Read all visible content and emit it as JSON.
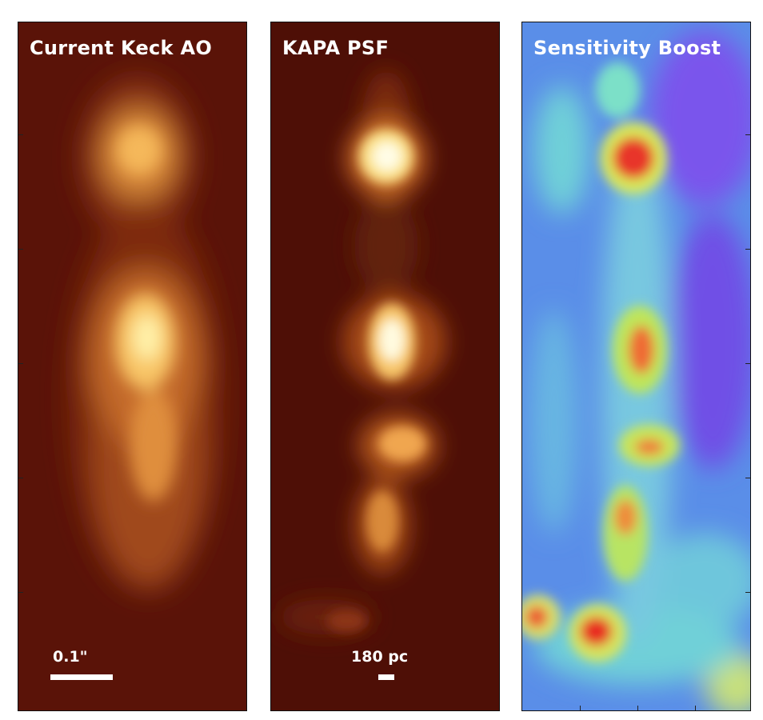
{
  "panels": [
    {
      "title": "Current Keck AO",
      "colormap": "afmhot",
      "background": "#5a1308",
      "scale_bar_label": "0.1\""
    },
    {
      "title": "KAPA PSF",
      "colormap": "afmhot",
      "background": "#4e0f06",
      "scale_bar_label": "180 pc"
    },
    {
      "title": "Sensitivity Boost",
      "colormap": "jet",
      "background": "#5a8ee8"
    }
  ]
}
